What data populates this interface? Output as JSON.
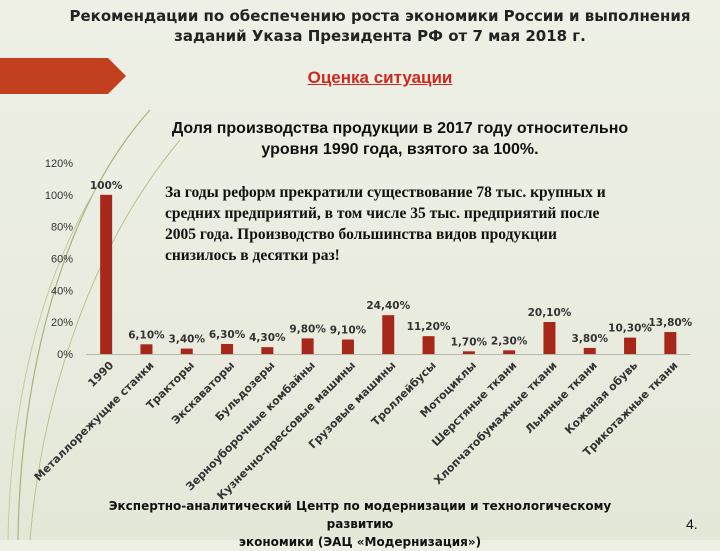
{
  "header": {
    "title_line1": "Рекомендации по обеспечению роста экономики России и выполнения",
    "title_line2": "заданий Указа Президента РФ от 7 мая 2018 г."
  },
  "section_title": "Оценка ситуации",
  "note": {
    "line1": "За годы реформ прекратили существование 78 тыс. крупных и",
    "line2": "средних предприятий, в том числе 35 тыс. предприятий после",
    "line3": "2005 года. Производство большинства видов продукции",
    "line4": "снизилось в десятки раз!"
  },
  "footer": {
    "line1": "Экспертно-аналитический Центр по модернизации и технологическому развитию",
    "line2": "экономики (ЭАЦ «Модернизация»)",
    "page_number": "4."
  },
  "colors": {
    "bar": "#a6281a",
    "accent": "#c2401f",
    "title_red": "#d0281e"
  },
  "chart_data": {
    "type": "bar",
    "title_line1": "Доля производства продукции в 2017 году относительно",
    "title_line2": "уровня 1990 года, взятого за 100%.",
    "categories": [
      "1990",
      "Металлорежущие станки",
      "Тракторы",
      "Экскаваторы",
      "Бульдозеры",
      "Зерноуборочные комбайны",
      "Кузнечно-прессовые машины",
      "Грузовые машины",
      "Троллейбусы",
      "Мотоциклы",
      "Шерстяные ткани",
      "Хлопчатобумажные ткани",
      "Льняные ткани",
      "Кожаная обувь",
      "Трикотажные ткани"
    ],
    "values": [
      100,
      6.1,
      3.4,
      6.3,
      4.3,
      9.8,
      9.1,
      24.4,
      11.2,
      1.7,
      2.3,
      20.1,
      3.8,
      10.3,
      13.8
    ],
    "data_labels": [
      "100%",
      "6,10%",
      "3,40%",
      "6,30%",
      "4,30%",
      "9,80%",
      "9,10%",
      "24,40%",
      "11,20%",
      "1,70%",
      "2,30%",
      "20,10%",
      "3,80%",
      "10,30%",
      "13,80%"
    ],
    "y_ticks": [
      "0%",
      "20%",
      "40%",
      "60%",
      "80%",
      "100%",
      "120%"
    ],
    "y_tick_values": [
      0,
      20,
      40,
      60,
      80,
      100,
      120
    ],
    "ylim": [
      0,
      120
    ],
    "grid": false,
    "legend": false
  }
}
